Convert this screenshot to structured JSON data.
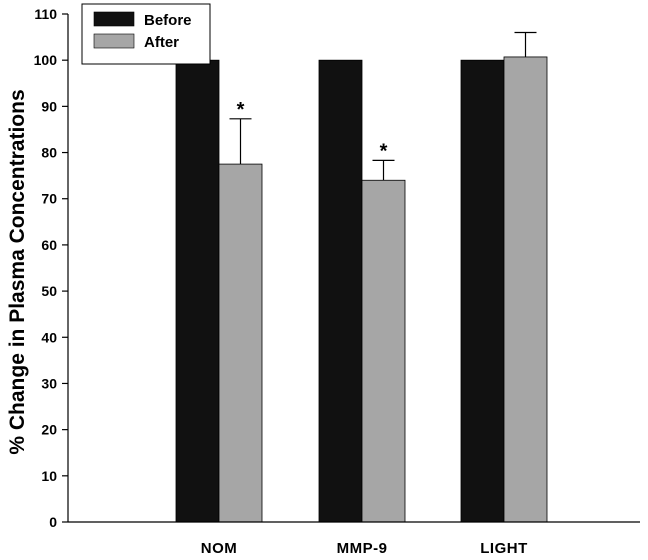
{
  "chart_data": {
    "type": "bar",
    "title": "",
    "xlabel": "",
    "ylabel": "% Change in Plasma Concentrations",
    "ylim": [
      0,
      110
    ],
    "yticks": [
      0,
      10,
      20,
      30,
      40,
      50,
      60,
      70,
      80,
      90,
      100,
      110
    ],
    "grid": false,
    "legend_position": "top-left",
    "categories": [
      "NOM",
      "MMP-9",
      "LIGHT"
    ],
    "series": [
      {
        "name": "Before",
        "color": "#111111",
        "values": [
          100,
          100,
          100
        ],
        "errors": [
          0,
          0,
          0
        ],
        "significant": [
          false,
          false,
          false
        ]
      },
      {
        "name": "After",
        "color": "#a6a6a6",
        "values": [
          77.5,
          74,
          100.7
        ],
        "errors": [
          9.8,
          4.3,
          5.3
        ],
        "significant": [
          true,
          true,
          false
        ]
      }
    ],
    "significance_marker": "*"
  }
}
